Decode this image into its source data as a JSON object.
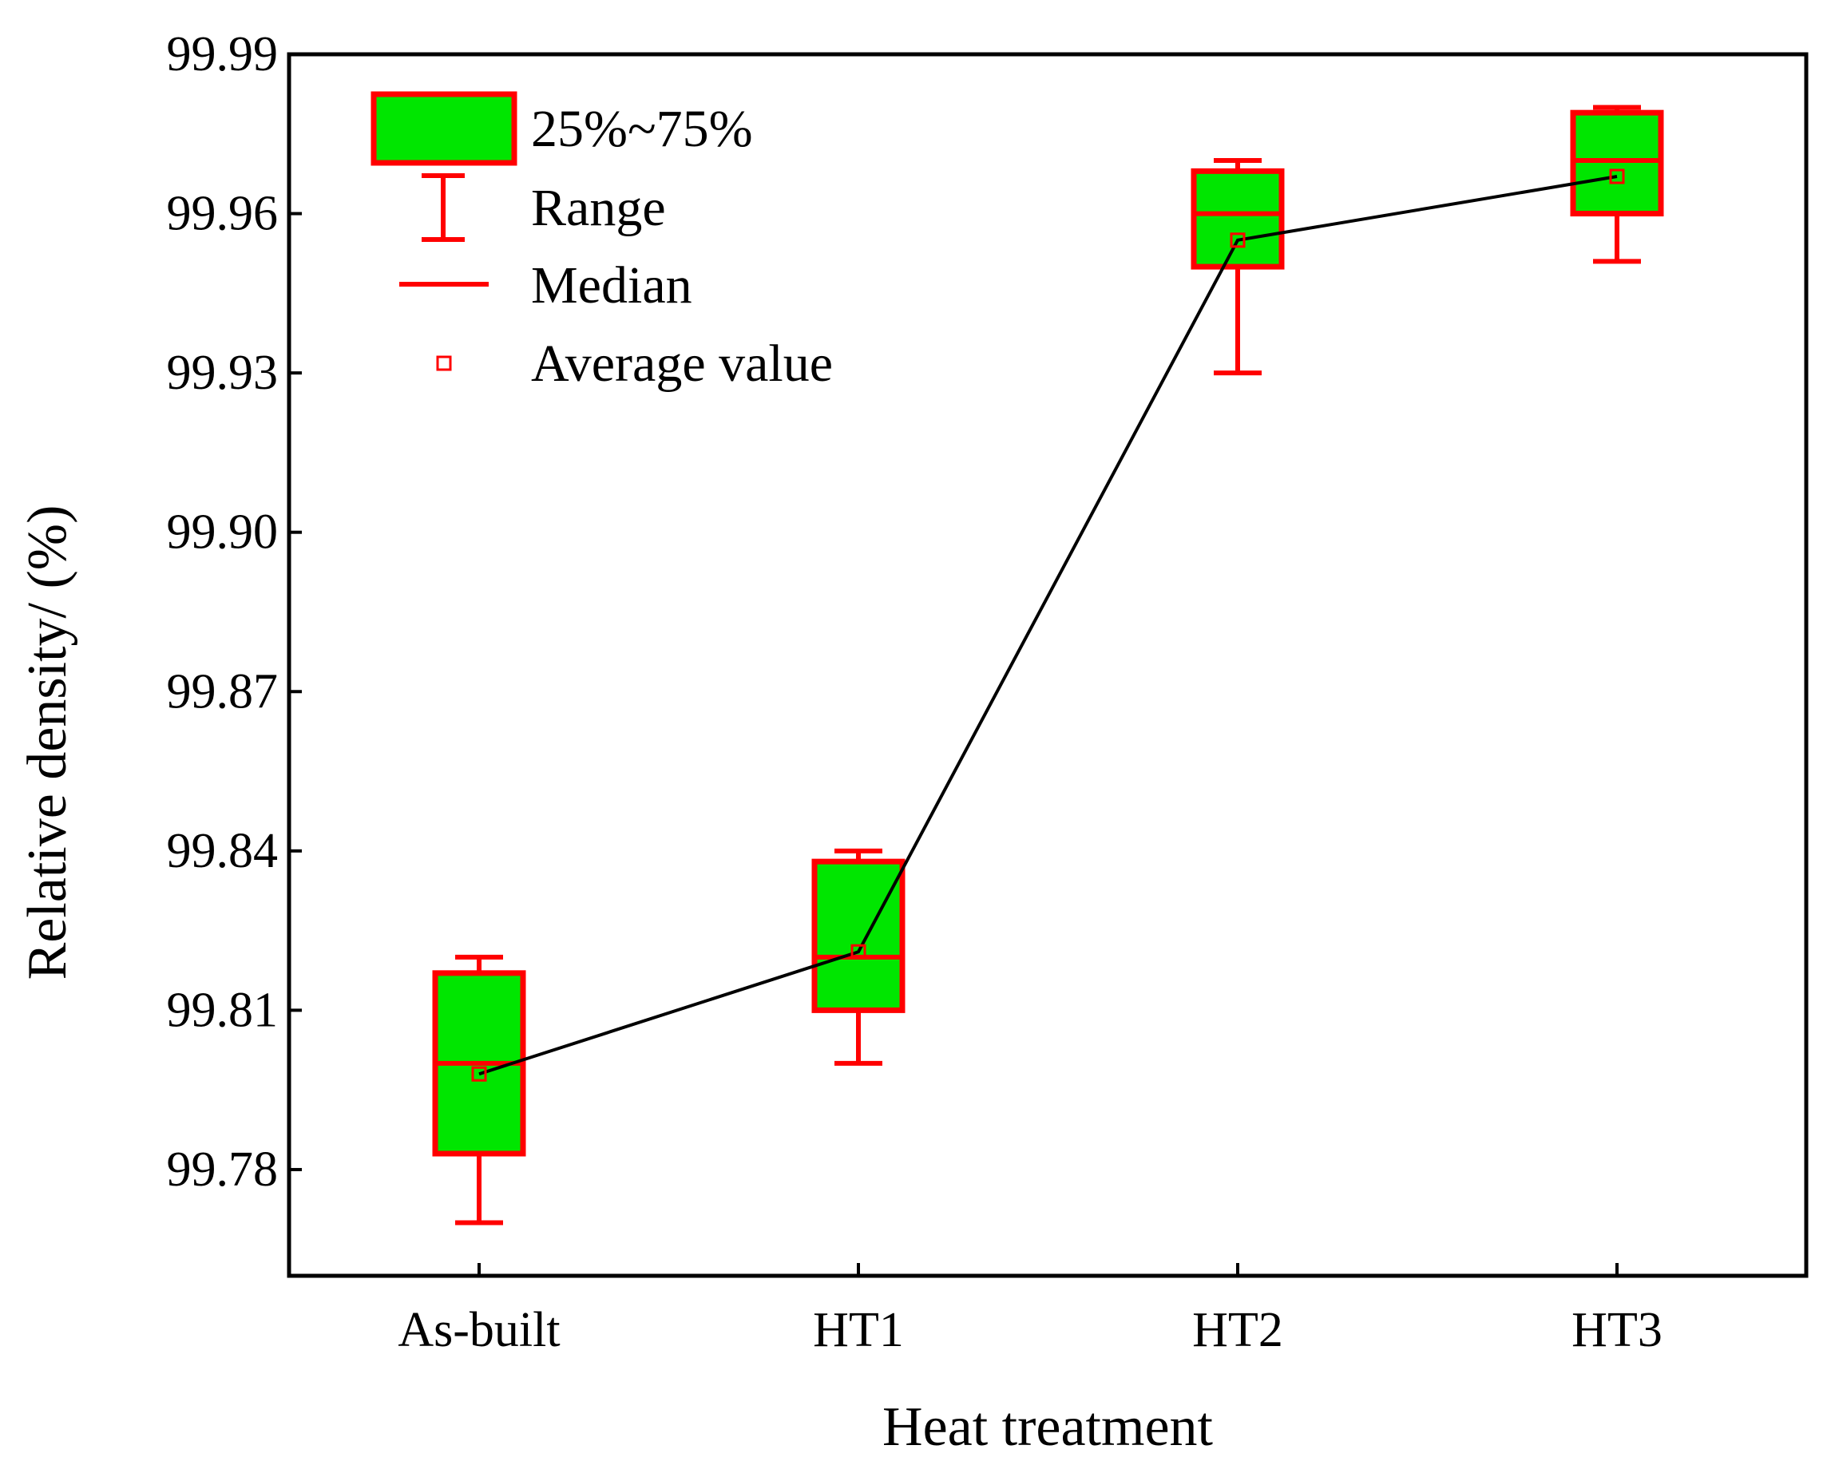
{
  "chart_data": {
    "type": "box",
    "title": "",
    "xlabel": "Heat treatment",
    "ylabel": "Relative density/ (%)",
    "ylim": [
      99.76,
      99.99
    ],
    "yticks": [
      "99.99",
      "99.96",
      "99.93",
      "99.90",
      "99.87",
      "99.84",
      "99.81",
      "99.78"
    ],
    "categories": [
      "As-built",
      "HT1",
      "HT2",
      "HT3"
    ],
    "boxes": [
      {
        "category": "As-built",
        "min": 99.77,
        "q1": 99.783,
        "median": 99.8,
        "q3": 99.817,
        "max": 99.82,
        "mean": 99.798
      },
      {
        "category": "HT1",
        "min": 99.8,
        "q1": 99.81,
        "median": 99.82,
        "q3": 99.838,
        "max": 99.84,
        "mean": 99.821
      },
      {
        "category": "HT2",
        "min": 99.93,
        "q1": 99.95,
        "median": 99.96,
        "q3": 99.968,
        "max": 99.97,
        "mean": 99.955
      },
      {
        "category": "HT3",
        "min": 99.951,
        "q1": 99.96,
        "median": 99.97,
        "q3": 99.979,
        "max": 99.98,
        "mean": 99.967
      }
    ],
    "mean_line": true,
    "legend": {
      "position": "top-left",
      "items": [
        "25%~75%",
        "Range",
        "Median",
        "Average value"
      ]
    },
    "colors": {
      "box_fill": "#00e600",
      "box_edge": "#ff0000",
      "whisker": "#ff0000",
      "median": "#ff0000",
      "mean_marker": "#ff0000",
      "mean_line": "#000000",
      "axis": "#000000"
    }
  }
}
